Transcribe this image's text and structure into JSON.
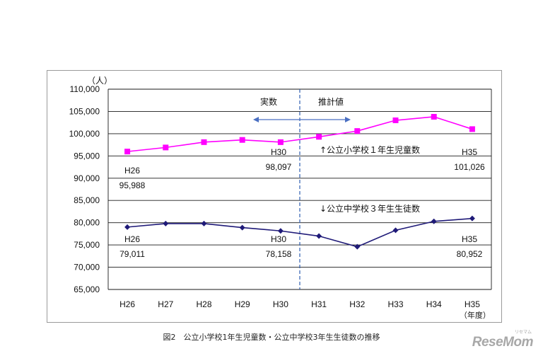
{
  "chart_data": {
    "type": "line",
    "categories": [
      "H26",
      "H27",
      "H28",
      "H29",
      "H30",
      "H31",
      "H32",
      "H33",
      "H34",
      "H35"
    ],
    "ylim": [
      65000,
      110000
    ],
    "ytick_step": 5000,
    "yticks": [
      "65,000",
      "70,000",
      "75,000",
      "80,000",
      "85,000",
      "90,000",
      "95,000",
      "100,000",
      "105,000",
      "110,000"
    ],
    "yunit": "（人）",
    "xunit": "（年度）",
    "grid": true,
    "series": [
      {
        "name": "↑公立小学校１年生児童数",
        "color": "#ff00ff",
        "marker": "square",
        "values": [
          95988,
          96900,
          98100,
          98600,
          98097,
          99300,
          100600,
          103000,
          103800,
          101026
        ]
      },
      {
        "name": "↓公立中学校３年生生徒数",
        "color": "#1f1a78",
        "marker": "diamond",
        "values": [
          79011,
          79800,
          79800,
          78900,
          78158,
          77000,
          74600,
          78300,
          80300,
          80952
        ]
      }
    ],
    "divider_after": "H30",
    "region_labels": {
      "actual": "実数",
      "estimate": "推計値"
    },
    "annotations": [
      {
        "label": "H26",
        "value": "95,988"
      },
      {
        "label": "H30",
        "value": "98,097"
      },
      {
        "label": "H35",
        "value": "101,026"
      },
      {
        "label": "H26",
        "value": "79,011"
      },
      {
        "label": "H30",
        "value": "78,158"
      },
      {
        "label": "H35",
        "value": "80,952"
      }
    ]
  },
  "caption": "図2　公立小学校1年生児童数・公立中学校3年生生徒数の推移",
  "brand": "ReseMom",
  "brand_small": "リセマム"
}
